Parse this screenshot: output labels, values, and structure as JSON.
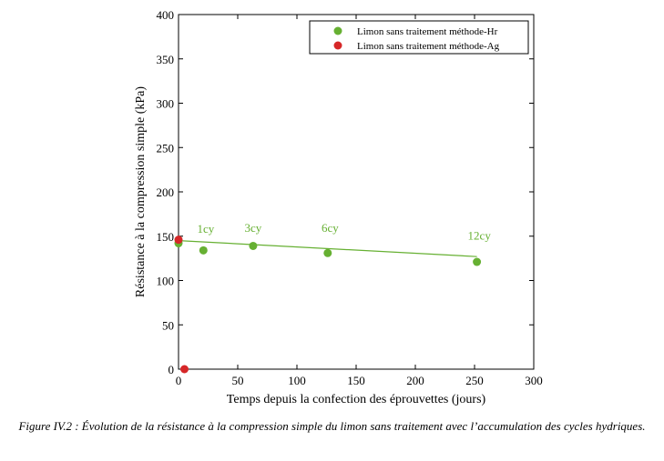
{
  "chart_data": {
    "type": "scatter",
    "xlabel": "Temps depuis la confection des éprouvettes (jours)",
    "ylabel": "Résistance à la compression simple (kPa)",
    "xlim": [
      0,
      300
    ],
    "ylim": [
      0,
      400
    ],
    "xticks": [
      0,
      50,
      100,
      150,
      200,
      250,
      300
    ],
    "yticks": [
      0,
      50,
      100,
      150,
      200,
      250,
      300,
      350,
      400
    ],
    "grid": false,
    "legend_position": "top-right",
    "series": [
      {
        "name": "Limon sans traitement méthode-Hr",
        "color": "#66b032",
        "points": [
          {
            "x": 0,
            "y": 142
          },
          {
            "x": 21,
            "y": 134
          },
          {
            "x": 63,
            "y": 139
          },
          {
            "x": 126,
            "y": 131
          },
          {
            "x": 252,
            "y": 121
          }
        ],
        "trendline": {
          "x": [
            0,
            252
          ],
          "y": [
            145,
            127
          ]
        }
      },
      {
        "name": "Limon sans traitement méthode-Ag",
        "color": "#d62728",
        "points": [
          {
            "x": 0,
            "y": 146
          },
          {
            "x": 5,
            "y": 0
          }
        ]
      }
    ],
    "annotations": [
      {
        "text": "1cy",
        "x": 23,
        "y": 154
      },
      {
        "text": "3cy",
        "x": 63,
        "y": 155
      },
      {
        "text": "6cy",
        "x": 128,
        "y": 155
      },
      {
        "text": "12cy",
        "x": 254,
        "y": 146
      }
    ]
  },
  "caption": {
    "label": "Figure IV.2",
    "text": " : Évolution de la résistance à la compression simple du limon sans traitement avec l’accumulation des cycles hydriques."
  }
}
